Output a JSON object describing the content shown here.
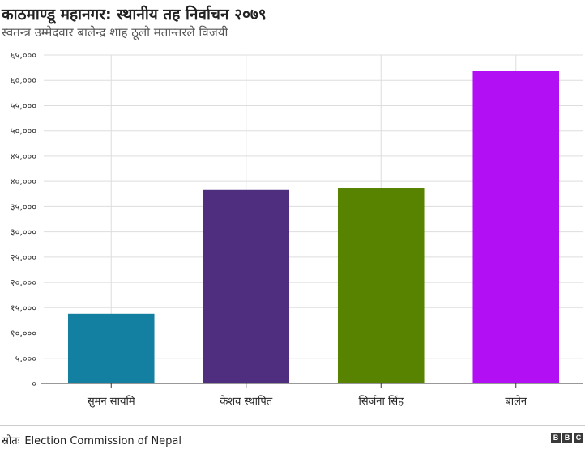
{
  "header": {
    "title": "काठमाण्डू महानगर: स्थानीय तह निर्वाचन २०७९",
    "subtitle": "स्वतन्त्र उम्मेदवार बालेन्द्र शाह ठूलो मतान्तरले विजयी"
  },
  "chart_data": {
    "type": "bar",
    "categories": [
      "सुमन सायमि",
      "केशव स्थापित",
      "सिर्जना सिंह",
      "बालेन"
    ],
    "values": [
      13800,
      38300,
      38600,
      61800
    ],
    "colors": [
      "#1380a1",
      "#4f2d7f",
      "#588300",
      "#b20ff5"
    ],
    "ylim": [
      0,
      65000
    ],
    "yticks": [
      0,
      5000,
      10000,
      15000,
      20000,
      25000,
      30000,
      35000,
      40000,
      45000,
      50000,
      55000,
      60000,
      65000
    ],
    "ytick_labels": [
      "०",
      "५,०००",
      "१०,०००",
      "१५,०००",
      "२०,०००",
      "२५,०००",
      "३०,०००",
      "३५,०००",
      "४०,०००",
      "४५,०००",
      "५०,०००",
      "५५,०००",
      "६०,०००",
      "६५,०००"
    ],
    "grid": true,
    "xlabel": "",
    "ylabel": ""
  },
  "footer": {
    "source_label": "स्रोतः",
    "source_text": "Election Commission of Nepal",
    "logo_letters": [
      "B",
      "B",
      "C"
    ]
  }
}
